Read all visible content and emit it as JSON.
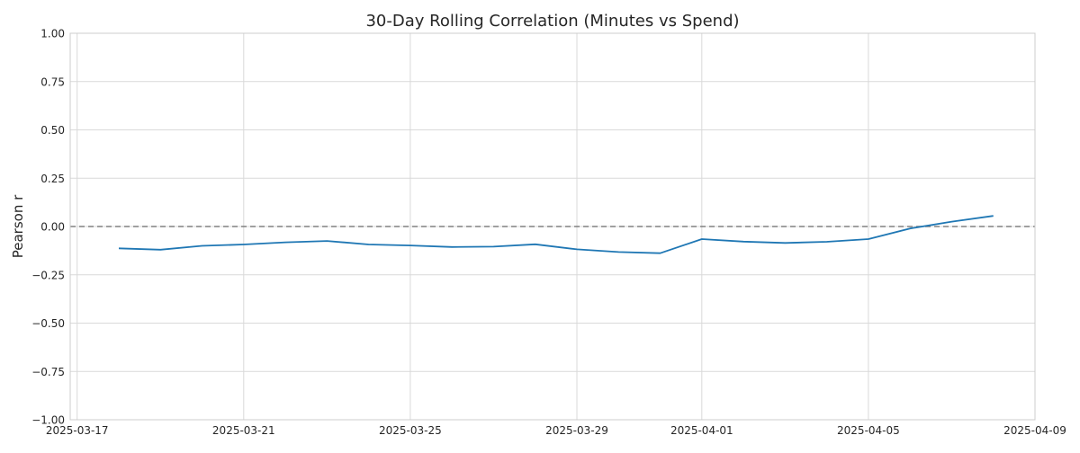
{
  "chart_data": {
    "type": "line",
    "title": "30-Day Rolling Correlation (Minutes vs Spend)",
    "xlabel": "",
    "ylabel": "Pearson r",
    "xlim": [
      "2025-03-16T20:00",
      "2025-04-09T00:00"
    ],
    "ylim": [
      -1.0,
      1.0
    ],
    "yticks": [
      -1.0,
      -0.75,
      -0.5,
      -0.25,
      0.0,
      0.25,
      0.5,
      0.75,
      1.0
    ],
    "ytick_labels": [
      "−1.00",
      "−0.75",
      "−0.50",
      "−0.25",
      "0.00",
      "0.25",
      "0.50",
      "0.75",
      "1.00"
    ],
    "xticks": [
      "2025-03-17",
      "2025-03-21",
      "2025-03-25",
      "2025-03-29",
      "2025-04-01",
      "2025-04-05",
      "2025-04-09"
    ],
    "grid": true,
    "reference_line": {
      "y": 0.0,
      "style": "dashed",
      "color": "#808080"
    },
    "series": [
      {
        "color": "#1f77b4",
        "x": [
          "2025-03-18",
          "2025-03-19",
          "2025-03-20",
          "2025-03-21",
          "2025-03-22",
          "2025-03-23",
          "2025-03-24",
          "2025-03-25",
          "2025-03-26",
          "2025-03-27",
          "2025-03-28",
          "2025-03-29",
          "2025-03-30",
          "2025-03-31",
          "2025-04-01",
          "2025-04-02",
          "2025-04-03",
          "2025-04-04",
          "2025-04-05",
          "2025-04-06",
          "2025-04-07",
          "2025-04-08"
        ],
        "y": [
          -0.113,
          -0.12,
          -0.1,
          -0.093,
          -0.082,
          -0.075,
          -0.093,
          -0.098,
          -0.106,
          -0.104,
          -0.092,
          -0.118,
          -0.132,
          -0.138,
          -0.065,
          -0.078,
          -0.085,
          -0.079,
          -0.065,
          -0.01,
          0.025,
          0.055
        ]
      }
    ]
  }
}
